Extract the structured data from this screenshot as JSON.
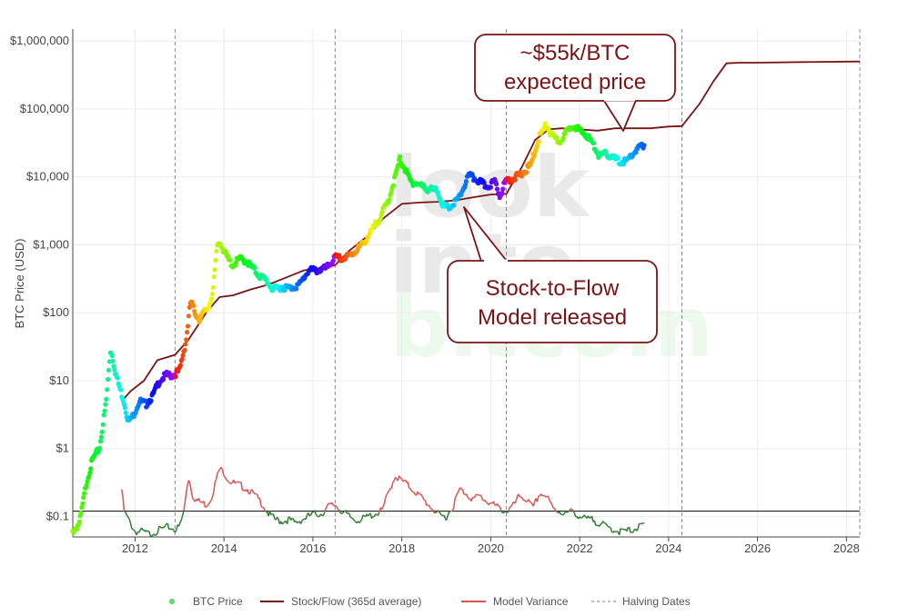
{
  "chart_data": {
    "type": "line",
    "ylabel": "BTC Price (USD)",
    "xlabel": "",
    "y_scale": "log",
    "ylim": [
      0.05,
      1500000
    ],
    "xlim": [
      2010.6,
      2028.3
    ],
    "x_ticks": [
      "2012",
      "2014",
      "2016",
      "2018",
      "2020",
      "2022",
      "2024",
      "2026",
      "2028"
    ],
    "y_ticks": [
      "$1,000,000",
      "$100,000",
      "$10,000",
      "$1,000",
      "$100",
      "$10",
      "$1",
      "$0.1"
    ],
    "grid": true,
    "watermark": [
      "look",
      "into",
      "bitcoin"
    ],
    "legend_position": "bottom",
    "colors": {
      "stock_flow": "#7a1414",
      "variance_high": "#d9534f",
      "variance_low": "#2e7d32",
      "halving": "#888888",
      "btc_legend": "#66dd66"
    },
    "halving_dates": [
      2012.9,
      2016.5,
      2020.35,
      2024.3,
      2028.3
    ],
    "reference_line": 0.12,
    "series": [
      {
        "name": "BTC Price",
        "x": [
          2010.6,
          2010.75,
          2010.9,
          2011.05,
          2011.2,
          2011.35,
          2011.45,
          2011.55,
          2011.65,
          2011.75,
          2011.85,
          2011.95,
          2012.1,
          2012.25,
          2012.4,
          2012.55,
          2012.7,
          2012.85,
          2013.0,
          2013.15,
          2013.25,
          2013.35,
          2013.45,
          2013.55,
          2013.65,
          2013.75,
          2013.85,
          2013.92,
          2014.0,
          2014.1,
          2014.2,
          2014.35,
          2014.5,
          2014.65,
          2014.8,
          2014.95,
          2015.1,
          2015.3,
          2015.5,
          2015.7,
          2015.9,
          2016.1,
          2016.3,
          2016.5,
          2016.7,
          2016.9,
          2017.1,
          2017.3,
          2017.5,
          2017.7,
          2017.85,
          2017.96,
          2018.05,
          2018.2,
          2018.35,
          2018.5,
          2018.65,
          2018.8,
          2018.95,
          2019.1,
          2019.3,
          2019.5,
          2019.7,
          2019.9,
          2020.1,
          2020.2,
          2020.35,
          2020.5,
          2020.7,
          2020.9,
          2021.1,
          2021.25,
          2021.4,
          2021.55,
          2021.7,
          2021.85,
          2022.0,
          2022.15,
          2022.3,
          2022.45,
          2022.6,
          2022.75,
          2022.9,
          2023.05,
          2023.2,
          2023.35,
          2023.45
        ],
        "values": [
          0.06,
          0.08,
          0.3,
          0.7,
          1.0,
          5,
          30,
          14,
          8,
          5,
          2.5,
          3,
          5,
          4.5,
          6,
          10,
          12,
          12,
          14,
          40,
          150,
          100,
          80,
          100,
          120,
          200,
          1000,
          1100,
          800,
          600,
          500,
          620,
          580,
          450,
          350,
          300,
          220,
          240,
          230,
          260,
          420,
          420,
          450,
          650,
          620,
          750,
          1000,
          1500,
          2500,
          4500,
          10000,
          18000,
          14000,
          8500,
          8000,
          7000,
          6500,
          6300,
          3500,
          3600,
          5000,
          10500,
          9000,
          7200,
          8500,
          5300,
          9000,
          9500,
          11000,
          15000,
          40000,
          58000,
          38000,
          33000,
          45000,
          60000,
          47000,
          42000,
          30000,
          20000,
          22000,
          19000,
          16500,
          17000,
          22000,
          27000,
          30000
        ]
      },
      {
        "name": "Stock/Flow (365d average)",
        "x": [
          2011.7,
          2011.9,
          2012.2,
          2012.5,
          2012.9,
          2013.2,
          2013.6,
          2013.9,
          2014.2,
          2014.6,
          2015.0,
          2015.4,
          2015.8,
          2016.2,
          2016.5,
          2016.8,
          2017.2,
          2017.6,
          2018.0,
          2018.4,
          2018.8,
          2019.2,
          2019.6,
          2020.0,
          2020.35,
          2020.7,
          2021.0,
          2021.3,
          2021.6,
          2022.0,
          2022.4,
          2022.8,
          2023.2,
          2023.6,
          2024.0,
          2024.3,
          2024.7,
          2025.0,
          2025.3,
          2025.6,
          2026.0,
          2027.0,
          2028.3
        ],
        "values": [
          5,
          7,
          10,
          20,
          24,
          40,
          100,
          170,
          180,
          220,
          260,
          330,
          420,
          460,
          500,
          800,
          1300,
          2500,
          4000,
          4200,
          4300,
          4500,
          5000,
          5500,
          5600,
          14000,
          35000,
          50000,
          52000,
          50000,
          48000,
          52000,
          52000,
          52000,
          55000,
          56000,
          120000,
          250000,
          470000,
          480000,
          480000,
          490000,
          500000
        ]
      },
      {
        "name": "Model Variance",
        "x": [
          2011.7,
          2011.75,
          2011.85,
          2012.0,
          2012.15,
          2012.3,
          2012.45,
          2012.6,
          2012.75,
          2012.9,
          2013.0,
          2013.1,
          2013.2,
          2013.3,
          2013.4,
          2013.5,
          2013.6,
          2013.7,
          2013.8,
          2013.9,
          2014.0,
          2014.1,
          2014.25,
          2014.4,
          2014.55,
          2014.7,
          2014.85,
          2015.0,
          2015.15,
          2015.3,
          2015.45,
          2015.6,
          2015.75,
          2015.9,
          2016.05,
          2016.2,
          2016.35,
          2016.5,
          2016.65,
          2016.8,
          2016.95,
          2017.1,
          2017.25,
          2017.4,
          2017.55,
          2017.7,
          2017.85,
          2017.96,
          2018.1,
          2018.25,
          2018.4,
          2018.55,
          2018.7,
          2018.85,
          2019.0,
          2019.15,
          2019.3,
          2019.45,
          2019.6,
          2019.75,
          2019.9,
          2020.05,
          2020.2,
          2020.35,
          2020.5,
          2020.65,
          2020.8,
          2020.95,
          2021.1,
          2021.25,
          2021.4,
          2021.55,
          2021.7,
          2021.85,
          2022.0,
          2022.15,
          2022.3,
          2022.45,
          2022.6,
          2022.75,
          2022.9,
          2023.05,
          2023.2,
          2023.35,
          2023.45
        ],
        "values": [
          0.25,
          0.12,
          0.09,
          0.06,
          0.06,
          0.055,
          0.06,
          0.065,
          0.07,
          0.065,
          0.07,
          0.12,
          0.4,
          0.2,
          0.17,
          0.16,
          0.15,
          0.18,
          0.3,
          0.5,
          0.45,
          0.35,
          0.3,
          0.28,
          0.25,
          0.2,
          0.16,
          0.11,
          0.09,
          0.085,
          0.09,
          0.08,
          0.09,
          0.1,
          0.11,
          0.11,
          0.14,
          0.15,
          0.12,
          0.1,
          0.09,
          0.09,
          0.1,
          0.11,
          0.12,
          0.22,
          0.4,
          0.35,
          0.3,
          0.25,
          0.2,
          0.16,
          0.13,
          0.1,
          0.1,
          0.14,
          0.25,
          0.22,
          0.18,
          0.2,
          0.17,
          0.15,
          0.13,
          0.12,
          0.14,
          0.2,
          0.18,
          0.13,
          0.22,
          0.2,
          0.13,
          0.12,
          0.11,
          0.12,
          0.1,
          0.09,
          0.09,
          0.08,
          0.07,
          0.065,
          0.06,
          0.06,
          0.065,
          0.07,
          0.075
        ]
      },
      {
        "name": "Halving Dates",
        "x": [],
        "values": []
      }
    ],
    "annotations": [
      {
        "id": "expected",
        "lines": [
          "~$55k/BTC",
          "expected price"
        ],
        "target_x": 2022.9,
        "target_y": 52000
      },
      {
        "id": "released",
        "lines": [
          "Stock-to-Flow",
          "Model released"
        ],
        "target_x": 2019.25,
        "target_y": 4500
      }
    ]
  }
}
